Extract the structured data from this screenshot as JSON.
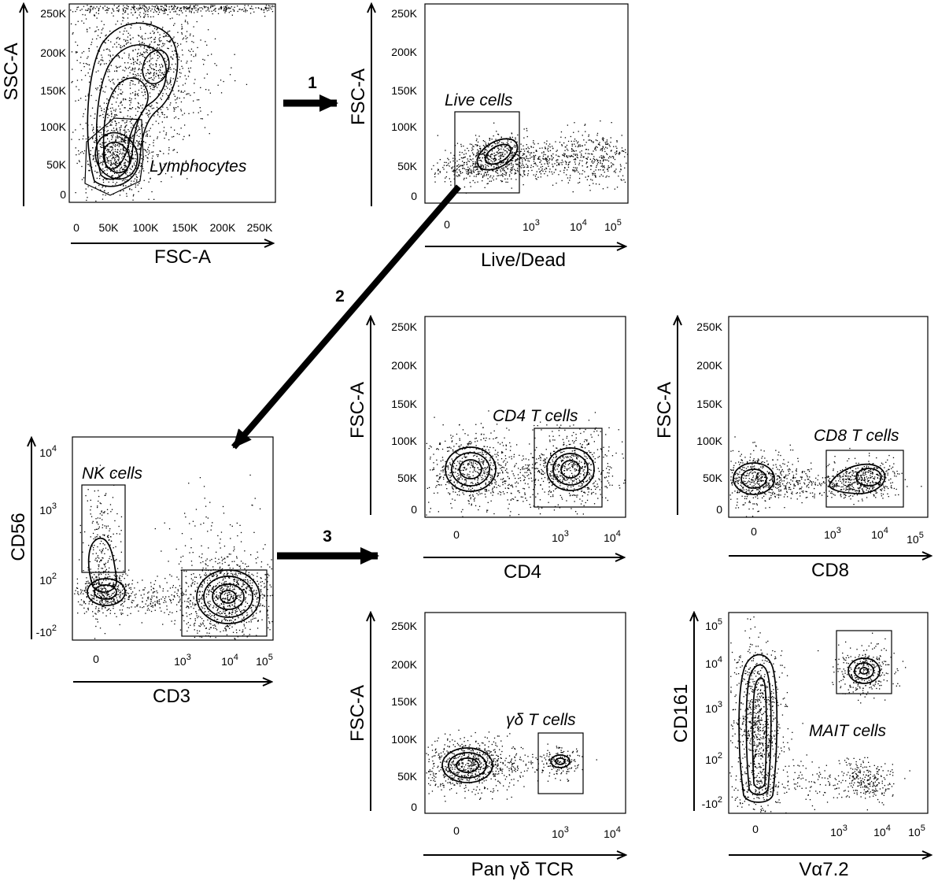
{
  "steps": [
    "1",
    "2",
    "3"
  ],
  "plots": [
    {
      "id": "lymphocytes",
      "xlabel": "FSC-A",
      "ylabel": "SSC-A",
      "xticks": [
        "0",
        "50K",
        "100K",
        "150K",
        "200K",
        "250K"
      ],
      "yticks": [
        "250K",
        "200K",
        "150K",
        "100K",
        "50K",
        "0"
      ],
      "gate": "Lymphocytes"
    },
    {
      "id": "live",
      "xlabel": "Live/Dead",
      "ylabel": "FSC-A",
      "xticks": [
        "0",
        "10^3",
        "10^4",
        "10^5"
      ],
      "yticks": [
        "250K",
        "200K",
        "150K",
        "100K",
        "50K",
        "0"
      ],
      "gate": "Live cells"
    },
    {
      "id": "nk",
      "xlabel": "CD3",
      "ylabel": "CD56",
      "xticks": [
        "0",
        "10^3",
        "10^4",
        "10^5"
      ],
      "yticks": [
        "10^4",
        "10^3",
        "10^2",
        "-10^2"
      ],
      "gate": "NK cells"
    },
    {
      "id": "cd4",
      "xlabel": "CD4",
      "ylabel": "FSC-A",
      "xticks": [
        "0",
        "10^3",
        "10^4"
      ],
      "yticks": [
        "250K",
        "200K",
        "150K",
        "100K",
        "50K",
        "0"
      ],
      "gate": "CD4 T cells"
    },
    {
      "id": "cd8",
      "xlabel": "CD8",
      "ylabel": "FSC-A",
      "xticks": [
        "0",
        "10^3",
        "10^4",
        "10^5"
      ],
      "yticks": [
        "250K",
        "200K",
        "150K",
        "100K",
        "50K",
        "0"
      ],
      "gate": "CD8 T cells"
    },
    {
      "id": "gd",
      "xlabel": "Pan γδ TCR",
      "ylabel": "FSC-A",
      "xticks": [
        "0",
        "10^3",
        "10^4"
      ],
      "yticks": [
        "250K",
        "200K",
        "150K",
        "100K",
        "50K",
        "0"
      ],
      "gate": "γδ T cells"
    },
    {
      "id": "mait",
      "xlabel": "Vα7.2",
      "ylabel": "CD161",
      "xticks": [
        "0",
        "10^3",
        "10^4",
        "10^5"
      ],
      "yticks": [
        "10^5",
        "10^4",
        "10^3",
        "10^2",
        "-10^2"
      ],
      "gate": "MAIT cells"
    }
  ]
}
